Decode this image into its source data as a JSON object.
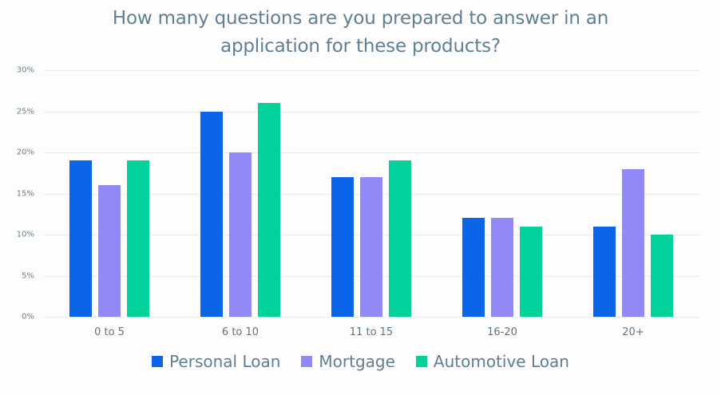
{
  "chart_data": {
    "type": "bar",
    "title": "How many questions are you prepared to answer in an application for these products?",
    "title_lines": [
      "How many questions are you prepared to answer in an",
      "application for these products?"
    ],
    "xlabel": "",
    "ylabel": "",
    "categories": [
      "0 to 5",
      "6 to 10",
      "11 to 15",
      "16-20",
      "20+"
    ],
    "series": [
      {
        "name": "Personal Loan",
        "color": "#0b65e8",
        "values": [
          19,
          25,
          17,
          12,
          11
        ]
      },
      {
        "name": "Mortgage",
        "color": "#9189f6",
        "values": [
          16,
          20,
          17,
          12,
          18
        ]
      },
      {
        "name": "Automotive Loan",
        "color": "#03d19c",
        "values": [
          19,
          26,
          19,
          11,
          10
        ]
      }
    ],
    "ylim": [
      0,
      30
    ],
    "yticks": [
      "0%",
      "5%",
      "10%",
      "15%",
      "20%",
      "25%",
      "30%"
    ],
    "grid": true,
    "legend_position": "bottom"
  }
}
